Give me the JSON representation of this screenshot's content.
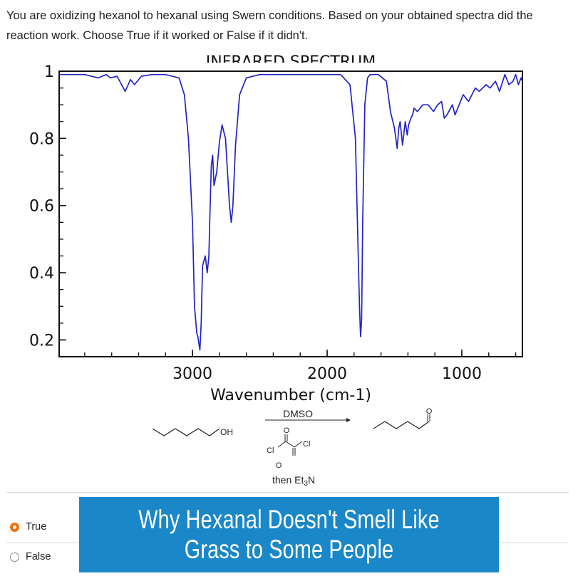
{
  "question": {
    "text": "You are oxidizing hexanol to hexanal using Swern conditions. Based on your obtained spectra did the reaction work. Choose True if it worked or False if it didn't."
  },
  "chart_data": {
    "type": "line",
    "title": "INFRARED SPECTRUM",
    "xlabel": "Wavenumber (cm-1)",
    "ylabel": "",
    "x_ticks": [
      "3000",
      "2000",
      "1000"
    ],
    "y_ticks": [
      "1",
      "0.8",
      "0.6",
      "0.4",
      "0.2"
    ],
    "xlim": [
      3990,
      550
    ],
    "ylim": [
      0.15,
      1.0
    ],
    "x_reversed": true,
    "grid": false,
    "series": [
      {
        "color": "#2323c8",
        "x": [
          3990,
          3900,
          3800,
          3700,
          3640,
          3610,
          3560,
          3500,
          3460,
          3430,
          3380,
          3300,
          3200,
          3100,
          3060,
          3030,
          3000,
          2985,
          2968,
          2960,
          2945,
          2935,
          2925,
          2905,
          2890,
          2878,
          2870,
          2860,
          2850,
          2840,
          2820,
          2800,
          2780,
          2755,
          2740,
          2725,
          2712,
          2700,
          2680,
          2650,
          2600,
          2500,
          2300,
          2100,
          1900,
          1830,
          1790,
          1775,
          1760,
          1752,
          1744,
          1736,
          1720,
          1700,
          1680,
          1620,
          1560,
          1530,
          1500,
          1480,
          1468,
          1458,
          1450,
          1440,
          1420,
          1405,
          1395,
          1378,
          1365,
          1355,
          1330,
          1290,
          1250,
          1210,
          1180,
          1150,
          1130,
          1110,
          1070,
          1050,
          1020,
          990,
          950,
          900,
          870,
          820,
          790,
          750,
          720,
          680,
          650,
          620,
          600,
          580,
          560,
          550
        ],
        "values": [
          0.99,
          0.99,
          0.99,
          0.98,
          0.99,
          0.98,
          0.985,
          0.94,
          0.975,
          0.96,
          0.985,
          0.99,
          0.99,
          0.98,
          0.93,
          0.8,
          0.55,
          0.3,
          0.22,
          0.21,
          0.17,
          0.25,
          0.42,
          0.45,
          0.4,
          0.45,
          0.58,
          0.72,
          0.75,
          0.66,
          0.7,
          0.79,
          0.84,
          0.8,
          0.7,
          0.6,
          0.55,
          0.6,
          0.78,
          0.93,
          0.98,
          0.99,
          0.99,
          0.99,
          0.99,
          0.96,
          0.8,
          0.55,
          0.3,
          0.21,
          0.26,
          0.55,
          0.9,
          0.98,
          0.99,
          0.99,
          0.97,
          0.88,
          0.83,
          0.77,
          0.83,
          0.85,
          0.82,
          0.78,
          0.85,
          0.81,
          0.84,
          0.86,
          0.87,
          0.89,
          0.88,
          0.9,
          0.9,
          0.88,
          0.9,
          0.91,
          0.86,
          0.87,
          0.9,
          0.87,
          0.9,
          0.93,
          0.91,
          0.95,
          0.94,
          0.96,
          0.95,
          0.97,
          0.94,
          0.99,
          0.96,
          0.97,
          0.99,
          0.96,
          0.98,
          0.97
        ]
      }
    ]
  },
  "scheme": {
    "reactant_group": "OH",
    "reagent_top": "DMSO",
    "reagent_cl_left": "Cl",
    "reagent_cl_right": "Cl",
    "reagent_o_top": "O",
    "reagent_o_bottom": "O",
    "reagent_then": "then Et",
    "reagent_sub": "3",
    "reagent_n": "N",
    "product_group": "O"
  },
  "options": {
    "true_label": "True",
    "false_label": "False",
    "selected": "True",
    "accent": "#e8740c"
  },
  "banner": {
    "text": "Why Hexanal Doesn't Smell Like Grass to Some People",
    "background": "#1a87c8"
  }
}
